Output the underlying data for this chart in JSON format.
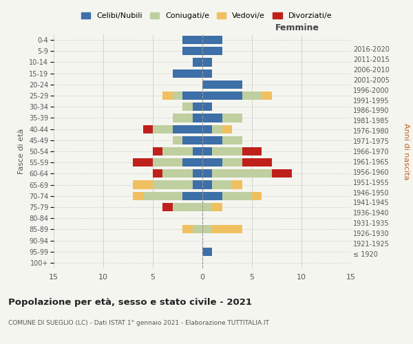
{
  "age_groups": [
    "100+",
    "95-99",
    "90-94",
    "85-89",
    "80-84",
    "75-79",
    "70-74",
    "65-69",
    "60-64",
    "55-59",
    "50-54",
    "45-49",
    "40-44",
    "35-39",
    "30-34",
    "25-29",
    "20-24",
    "15-19",
    "10-14",
    "5-9",
    "0-4"
  ],
  "birth_years": [
    "≤ 1920",
    "1921-1925",
    "1926-1930",
    "1931-1935",
    "1936-1940",
    "1941-1945",
    "1946-1950",
    "1951-1955",
    "1956-1960",
    "1961-1965",
    "1966-1970",
    "1971-1975",
    "1976-1980",
    "1981-1985",
    "1986-1990",
    "1991-1995",
    "1996-2000",
    "2001-2005",
    "2006-2010",
    "2011-2015",
    "2016-2020"
  ],
  "male": {
    "celibi": [
      0,
      0,
      0,
      0,
      0,
      0,
      2,
      1,
      1,
      2,
      1,
      2,
      3,
      1,
      1,
      2,
      0,
      3,
      1,
      2,
      2
    ],
    "coniugati": [
      0,
      0,
      0,
      1,
      0,
      3,
      4,
      4,
      3,
      3,
      3,
      1,
      2,
      2,
      1,
      1,
      0,
      0,
      0,
      0,
      0
    ],
    "vedovi": [
      0,
      0,
      0,
      1,
      0,
      0,
      1,
      2,
      0,
      0,
      0,
      0,
      0,
      0,
      0,
      1,
      0,
      0,
      0,
      0,
      0
    ],
    "divorziati": [
      0,
      0,
      0,
      0,
      0,
      1,
      0,
      0,
      1,
      2,
      1,
      0,
      1,
      0,
      0,
      0,
      0,
      0,
      0,
      0,
      0
    ]
  },
  "female": {
    "nubili": [
      0,
      1,
      0,
      0,
      0,
      0,
      2,
      1,
      1,
      2,
      1,
      2,
      1,
      2,
      1,
      4,
      4,
      1,
      1,
      2,
      2
    ],
    "coniugate": [
      0,
      0,
      0,
      1,
      0,
      1,
      3,
      2,
      6,
      2,
      3,
      2,
      1,
      2,
      0,
      2,
      0,
      0,
      0,
      0,
      0
    ],
    "vedove": [
      0,
      0,
      0,
      3,
      0,
      1,
      1,
      1,
      0,
      0,
      0,
      0,
      1,
      0,
      0,
      1,
      0,
      0,
      0,
      0,
      0
    ],
    "divorziate": [
      0,
      0,
      0,
      0,
      0,
      0,
      0,
      0,
      2,
      3,
      2,
      0,
      0,
      0,
      0,
      0,
      0,
      0,
      0,
      0,
      0
    ]
  },
  "colors": {
    "celibi": "#3d6fa8",
    "coniugati": "#bfcfa0",
    "vedovi": "#f0c060",
    "divorziati": "#c0201c"
  },
  "xlim": 15,
  "title": "Popolazione per età, sesso e stato civile - 2021",
  "subtitle": "COMUNE DI SUEGLIO (LC) - Dati ISTAT 1° gennaio 2021 - Elaborazione TUTTITALIA.IT",
  "xlabel_right": "Femmine",
  "ylabel": "Fasce di età",
  "ylabel_right": "Anni di nascita",
  "legend_labels": [
    "Celibi/Nubili",
    "Coniugati/e",
    "Vedovi/e",
    "Divorziati/e"
  ],
  "bg_color": "#f5f5f0"
}
